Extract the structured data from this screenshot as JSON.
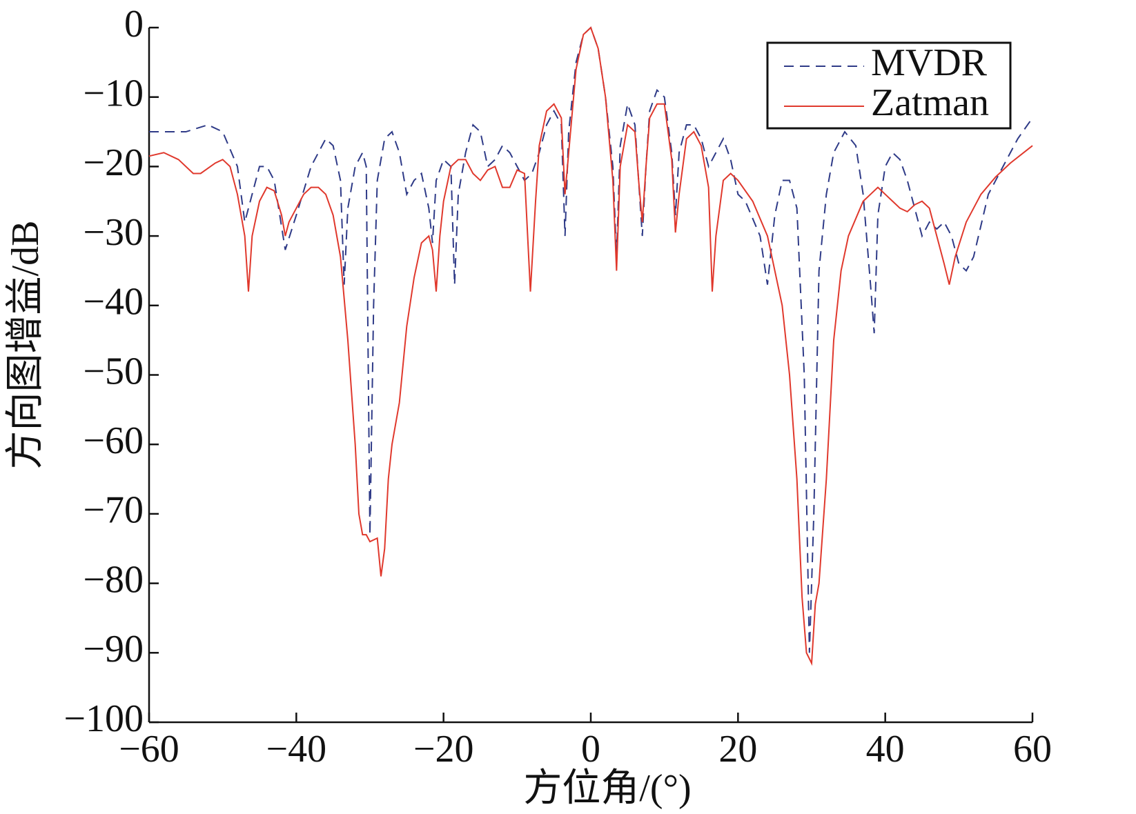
{
  "chart_data": {
    "type": "line",
    "xlabel": "方位角/(°)",
    "ylabel": "方向图增益/dB",
    "xlim": [
      -60,
      60
    ],
    "ylim": [
      -100,
      0
    ],
    "xticks": [
      {
        "value": -60,
        "label": "−60"
      },
      {
        "value": -40,
        "label": "−40"
      },
      {
        "value": -20,
        "label": "−20"
      },
      0,
      20,
      40,
      60
    ],
    "yticks": [
      0,
      {
        "value": -10,
        "label": "−10"
      },
      {
        "value": -20,
        "label": "−20"
      },
      {
        "value": -30,
        "label": "−30"
      },
      {
        "value": -40,
        "label": "−40"
      },
      {
        "value": -50,
        "label": "−50"
      },
      {
        "value": -60,
        "label": "−60"
      },
      {
        "value": -70,
        "label": "−70"
      },
      {
        "value": -80,
        "label": "−80"
      },
      {
        "value": -90,
        "label": "−90"
      },
      {
        "value": -100,
        "label": "−100"
      }
    ],
    "legend": "upper right",
    "series": [
      {
        "name": "MVDR",
        "color": "#2e3a87",
        "linestyle": "dashed",
        "x": [
          -60,
          -57,
          -55,
          -52,
          -50,
          -48,
          -47,
          -46,
          -45,
          -44,
          -43,
          -41.5,
          -40,
          -38,
          -36,
          -35,
          -34,
          -33.5,
          -33,
          -32,
          -31,
          -30.5,
          -30,
          -29.5,
          -29,
          -28,
          -27,
          -26,
          -25,
          -24,
          -23,
          -22,
          -21.5,
          -21,
          -20,
          -19,
          -18.5,
          -18,
          -17,
          -16,
          -15,
          -14,
          -13,
          -12,
          -11,
          -10,
          -9,
          -8,
          -7,
          -6,
          -5,
          -4,
          -3.5,
          -3,
          -2,
          -1,
          0,
          1,
          2,
          3,
          3.5,
          4,
          5,
          6,
          7,
          7.5,
          8,
          9,
          10,
          11,
          11.5,
          12,
          13,
          14,
          15,
          16,
          17,
          18,
          19,
          20,
          21,
          23,
          24,
          25,
          26,
          27,
          28,
          29,
          29.7,
          30.3,
          31,
          32,
          33,
          34.5,
          36,
          37,
          38,
          38.5,
          39,
          40,
          41,
          42,
          43,
          44,
          45,
          46,
          47,
          48,
          49,
          50,
          51,
          52,
          54,
          56,
          58,
          60
        ],
        "values": [
          -15,
          -15,
          -15,
          -14,
          -15,
          -20,
          -28,
          -24,
          -20,
          -20,
          -22,
          -32,
          -27,
          -20,
          -16,
          -17,
          -22,
          -37,
          -26,
          -20,
          -18,
          -20,
          -73,
          -40,
          -22,
          -16,
          -15,
          -18,
          -24,
          -22,
          -21,
          -26,
          -31,
          -22,
          -19,
          -20,
          -37,
          -24,
          -18,
          -14,
          -15,
          -20,
          -19,
          -17,
          -18,
          -20,
          -22,
          -21,
          -18,
          -14,
          -12,
          -14,
          -30,
          -15,
          -5,
          -1,
          0,
          -3,
          -10,
          -20,
          -33,
          -17,
          -11,
          -14,
          -30,
          -20,
          -12,
          -9,
          -10,
          -18,
          -27,
          -18,
          -14,
          -14,
          -16,
          -20,
          -18,
          -16,
          -19,
          -24,
          -25,
          -30,
          -37,
          -27,
          -22,
          -22,
          -26,
          -50,
          -90,
          -70,
          -35,
          -24,
          -18,
          -15,
          -17,
          -24,
          -37,
          -44,
          -27,
          -20,
          -18,
          -19,
          -22,
          -26,
          -30,
          -28,
          -29,
          -28,
          -30,
          -34,
          -35,
          -33,
          -24,
          -20,
          -16,
          -13
        ]
      },
      {
        "name": "Zatman",
        "color": "#e0382c",
        "linestyle": "solid",
        "x": [
          -60,
          -58,
          -56,
          -54,
          -53,
          -51,
          -50,
          -49,
          -48,
          -47,
          -46.5,
          -46,
          -45,
          -44,
          -43,
          -42,
          -41.5,
          -41,
          -40,
          -39,
          -38,
          -37,
          -36,
          -35,
          -34,
          -33,
          -32,
          -31.5,
          -31,
          -30.5,
          -30,
          -29,
          -28.5,
          -28,
          -27.5,
          -27,
          -26,
          -25,
          -24,
          -23,
          -22,
          -21.5,
          -21,
          -20.5,
          -20,
          -19,
          -18,
          -17,
          -16,
          -15,
          -14,
          -13,
          -12,
          -11,
          -10,
          -9,
          -8.2,
          -7.5,
          -7,
          -6,
          -5,
          -4,
          -3.5,
          -3,
          -2,
          -1,
          0,
          1,
          2,
          3,
          3.5,
          4,
          5,
          6,
          6.5,
          7,
          7.5,
          8,
          9,
          10,
          11,
          11.5,
          12,
          13,
          14,
          15,
          16,
          16.5,
          17,
          18,
          19,
          20,
          22,
          24,
          26,
          27,
          28,
          28.7,
          29.3,
          30,
          30.5,
          31,
          32,
          33,
          34,
          35,
          37,
          38,
          39,
          40,
          41,
          42,
          43,
          44,
          45,
          46,
          47,
          48,
          48.7,
          49.5,
          51,
          53,
          55,
          57,
          60
        ],
        "values": [
          -18.5,
          -18,
          -19,
          -21,
          -21,
          -19.5,
          -19,
          -20,
          -24,
          -30,
          -38,
          -30,
          -25,
          -23,
          -23.5,
          -27,
          -30,
          -28,
          -26,
          -24,
          -23,
          -23,
          -24,
          -27,
          -33,
          -45,
          -60,
          -70,
          -73,
          -73,
          -74,
          -73.5,
          -79,
          -75,
          -65,
          -60,
          -54,
          -43,
          -36,
          -31,
          -30,
          -32,
          -38,
          -30,
          -25,
          -20,
          -19,
          -19,
          -21,
          -22,
          -20.5,
          -20,
          -23,
          -23,
          -20.5,
          -21,
          -38,
          -25,
          -17,
          -12,
          -11,
          -13,
          -24,
          -18,
          -6,
          -1,
          0,
          -3,
          -10,
          -22,
          -35,
          -20,
          -14,
          -15,
          -22,
          -28,
          -20,
          -13,
          -11,
          -11,
          -19,
          -29.5,
          -24,
          -16,
          -15,
          -17,
          -23,
          -38,
          -30,
          -22,
          -21,
          -22,
          -25,
          -30,
          -40,
          -50,
          -65,
          -82,
          -90,
          -91.5,
          -83,
          -80,
          -65,
          -45,
          -35,
          -30,
          -25,
          -24,
          -23,
          -24,
          -25,
          -26,
          -26.5,
          -25.5,
          -25,
          -26,
          -30,
          -34,
          -37,
          -33,
          -28,
          -24,
          -21.5,
          -19.5,
          -17
        ]
      }
    ]
  }
}
